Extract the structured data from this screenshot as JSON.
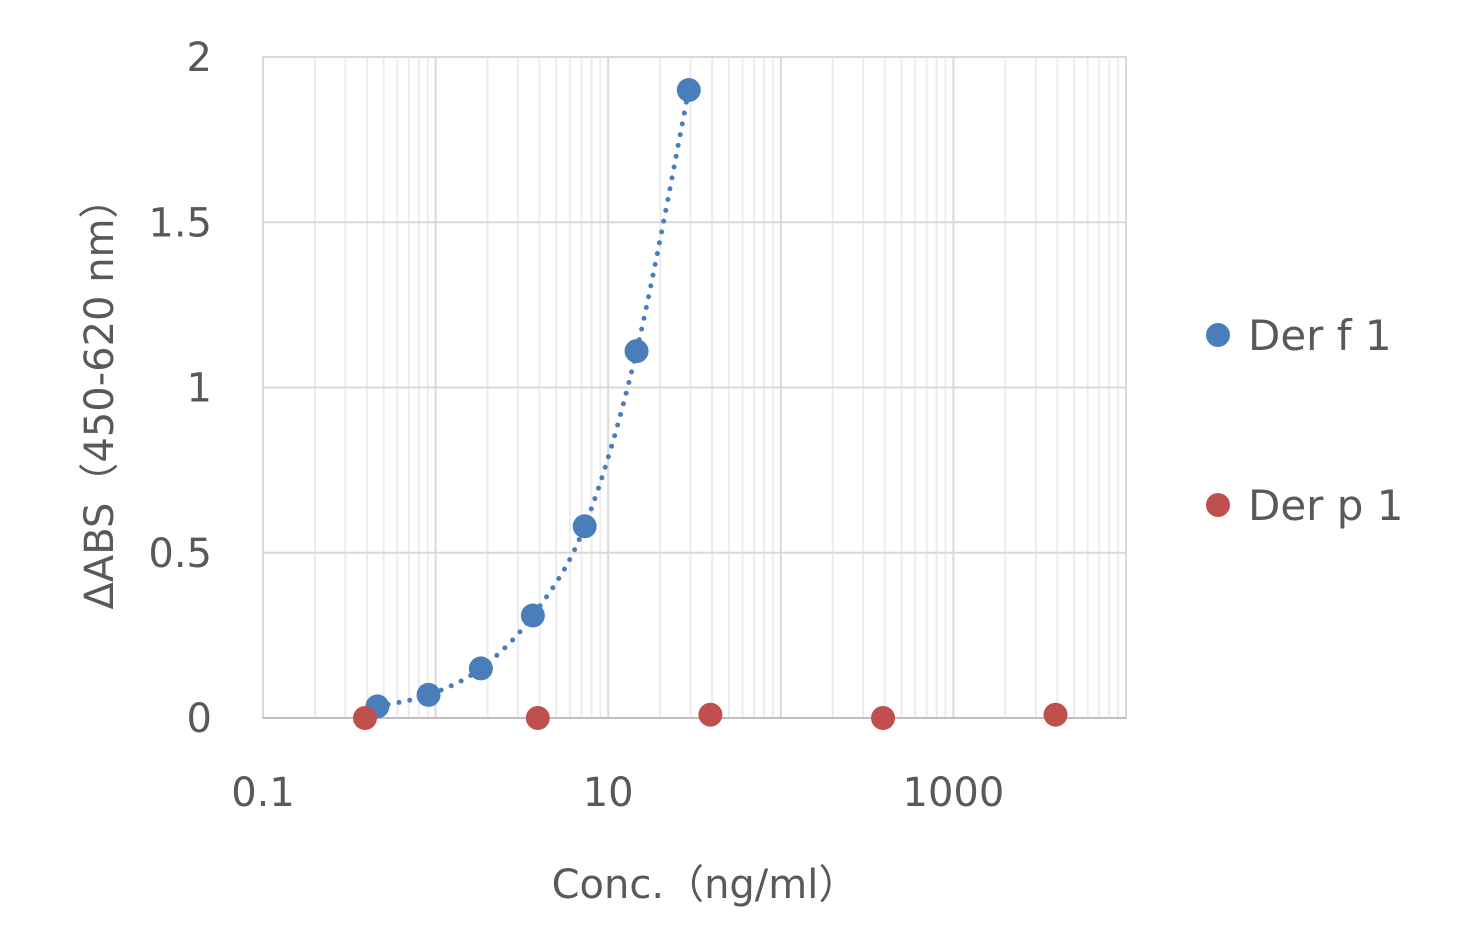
{
  "chart_data": {
    "type": "scatter",
    "title": "",
    "xlabel": "Conc.（ng/ml）",
    "ylabel": "ΔABS（450-620 nm）",
    "x_scale": "log",
    "xlim": [
      0.1,
      10000
    ],
    "ylim": [
      0,
      2
    ],
    "x_ticks": [
      0.1,
      10,
      1000
    ],
    "x_tick_labels": [
      "0.1",
      "10",
      "1000"
    ],
    "y_ticks": [
      0,
      0.5,
      1,
      1.5,
      2
    ],
    "y_tick_labels": [
      "0",
      "0.5",
      "1",
      "1.5",
      "2"
    ],
    "grid": true,
    "legend_position": "right",
    "series": [
      {
        "name": "Der f 1",
        "color": "#4a7ebb",
        "trendline": "dotted",
        "points": [
          {
            "x": 0.46,
            "y": 0.035
          },
          {
            "x": 0.91,
            "y": 0.07
          },
          {
            "x": 1.83,
            "y": 0.15
          },
          {
            "x": 3.66,
            "y": 0.31
          },
          {
            "x": 7.31,
            "y": 0.58
          },
          {
            "x": 14.6,
            "y": 1.11
          },
          {
            "x": 29.3,
            "y": 1.9
          }
        ]
      },
      {
        "name": "Der p 1",
        "color": "#c0504d",
        "trendline": "",
        "points": [
          {
            "x": 0.39,
            "y": 0.0
          },
          {
            "x": 3.91,
            "y": 0.0
          },
          {
            "x": 39.1,
            "y": 0.01
          },
          {
            "x": 391,
            "y": 0.0
          },
          {
            "x": 3906,
            "y": 0.01
          }
        ]
      }
    ]
  }
}
